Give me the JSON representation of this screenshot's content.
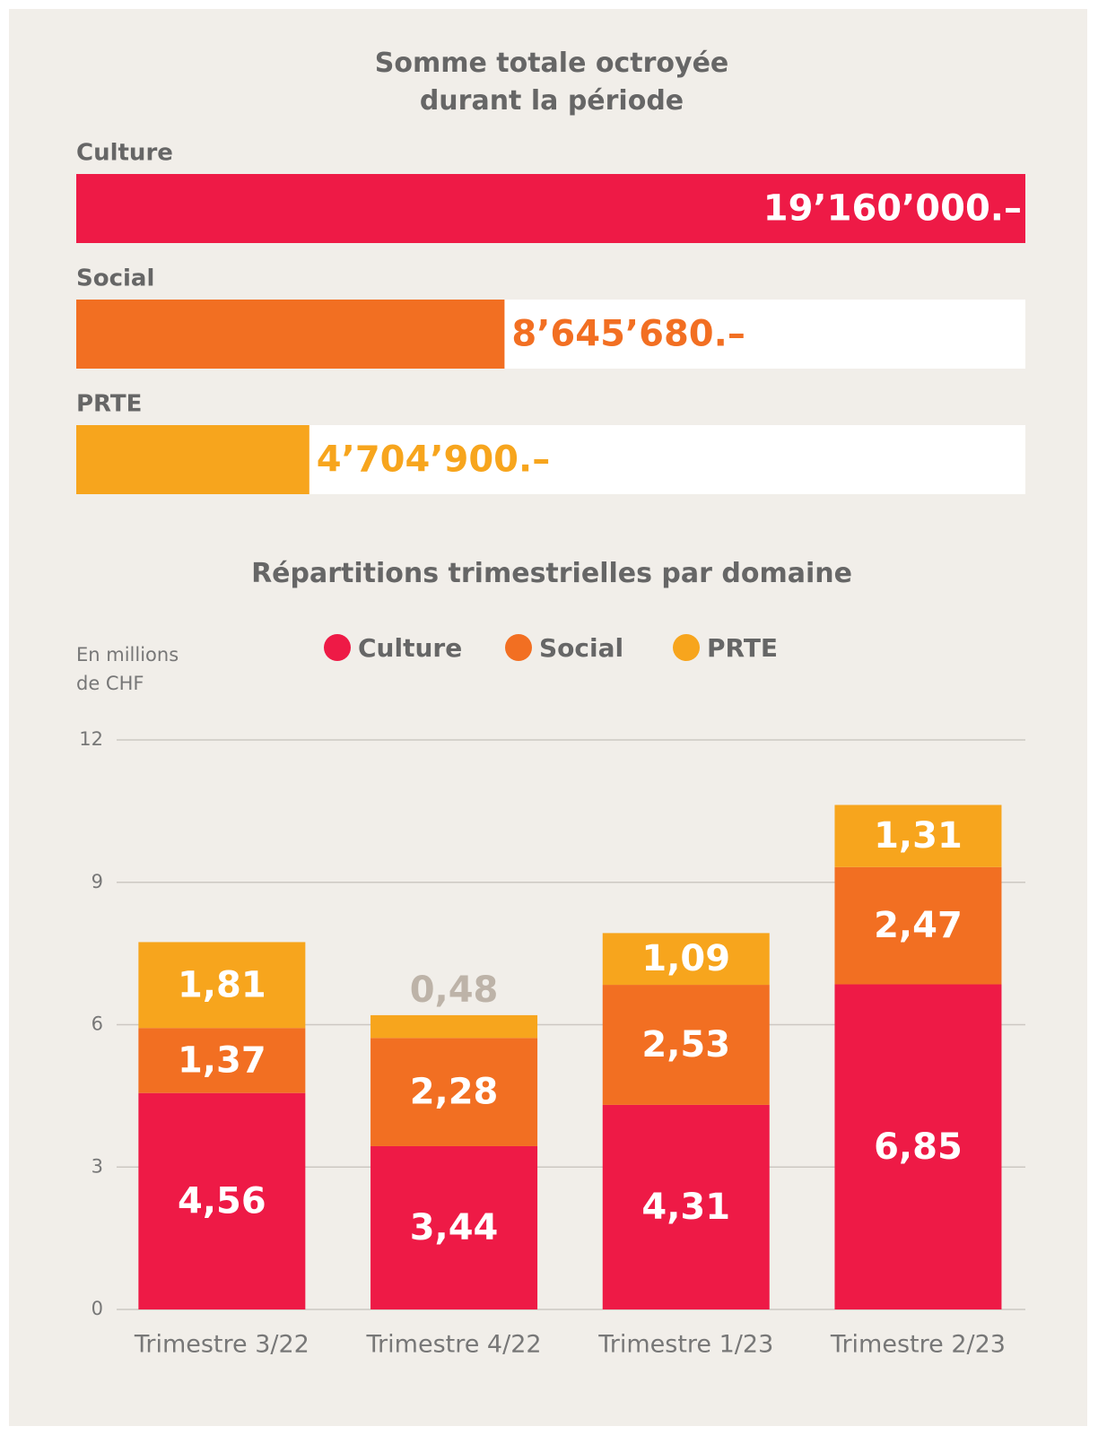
{
  "chart_data": [
    {
      "type": "hbar",
      "title": "Somme totale octroyée durant la période",
      "categories": [
        "Culture",
        "Social",
        "PRTE"
      ],
      "values": [
        19160000,
        8645680,
        4704900
      ],
      "value_labels": [
        "19’160’000.–",
        "8’645’680.–",
        "4’704’900.–"
      ],
      "colors": [
        "#ee1a46",
        "#f26f22",
        "#f7a51d"
      ]
    },
    {
      "type": "stacked_bar",
      "title": "Répartitions trimestrielles par domaine",
      "ylabel": "En millions de CHF",
      "categories": [
        "Trimestre 3/22",
        "Trimestre 4/22",
        "Trimestre 1/23",
        "Trimestre 2/23"
      ],
      "series": [
        {
          "name": "Culture",
          "color": "#ee1a46",
          "values": [
            4.56,
            3.44,
            4.31,
            6.85
          ],
          "value_labels": [
            "4,56",
            "3,44",
            "4,31",
            "6,85"
          ]
        },
        {
          "name": "Social",
          "color": "#f26f22",
          "values": [
            1.37,
            2.28,
            2.53,
            2.47
          ],
          "value_labels": [
            "1,37",
            "2,28",
            "2,53",
            "2,47"
          ]
        },
        {
          "name": "PRTE",
          "color": "#f7a51d",
          "values": [
            1.81,
            0.48,
            1.09,
            1.31
          ],
          "value_labels": [
            "1,81",
            "0,48",
            "1,09",
            "1,31"
          ]
        }
      ],
      "ylim": [
        0,
        12
      ],
      "yticks": [
        0,
        3,
        6,
        9,
        12
      ],
      "grid": true,
      "legend": "top"
    }
  ]
}
